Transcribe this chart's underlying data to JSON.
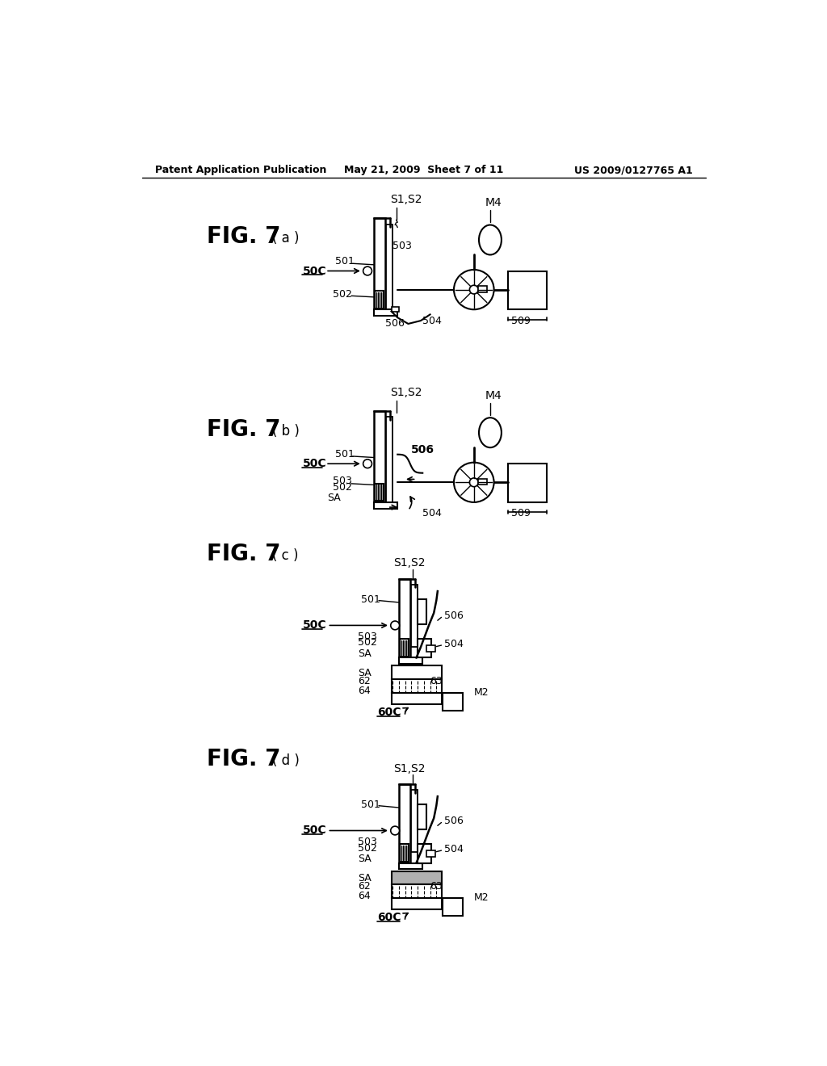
{
  "bg_color": "#ffffff",
  "header_left": "Patent Application Publication",
  "header_center": "May 21, 2009  Sheet 7 of 11",
  "header_right": "US 2009/0127765 A1"
}
